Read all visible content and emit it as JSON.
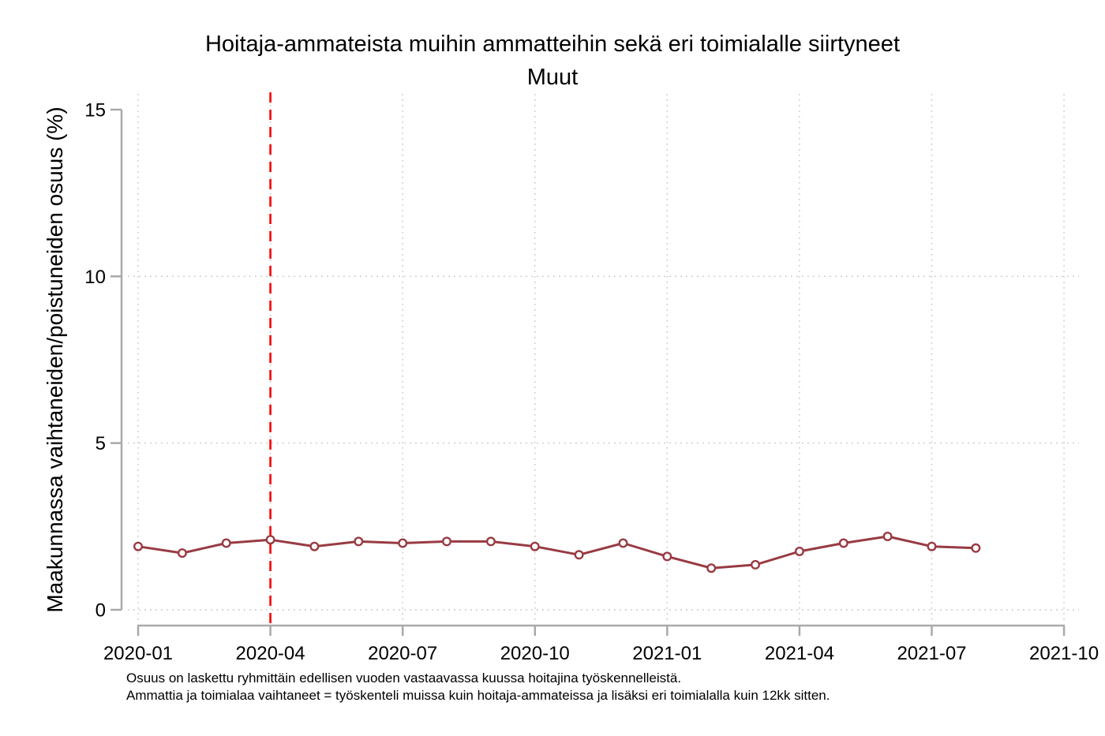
{
  "header": {
    "title": "Hoitaja-ammateista muihin ammatteihin sekä eri toimialalle siirtyneet",
    "subtitle": "Muut"
  },
  "footnotes": {
    "line1": "Osuus on laskettu ryhmittäin edellisen vuoden vastaavassa kuussa hoitajina työskennelleistä.",
    "line2": "Ammattia ja toimialaa vaihtaneet = työskenteli muissa kuin hoitaja-ammateissa ja lisäksi eri toimialalla kuin 12kk sitten."
  },
  "chart_data": {
    "type": "line",
    "title": "Hoitaja-ammateista muihin ammatteihin sekä eri toimialalle siirtyneet",
    "subtitle": "Muut",
    "xlabel": "",
    "ylabel": "Maakunnassa vaihtaneiden/poistuneiden osuus (%)",
    "ylim": [
      0,
      15
    ],
    "y_ticks": [
      0,
      5,
      10,
      15
    ],
    "y_grid_at": [
      0,
      5,
      10
    ],
    "x_axis_start": "2020-01",
    "x_axis_end": "2021-10",
    "x_tick_labels": [
      "2020-01",
      "2020-04",
      "2020-07",
      "2020-10",
      "2021-01",
      "2021-04",
      "2021-07",
      "2021-10"
    ],
    "grid": true,
    "legend": "none",
    "marker": "hollow-circle",
    "series": [
      {
        "name": "Muut",
        "x": [
          "2020-01",
          "2020-02",
          "2020-03",
          "2020-04",
          "2020-05",
          "2020-06",
          "2020-07",
          "2020-08",
          "2020-09",
          "2020-10",
          "2020-11",
          "2020-12",
          "2021-01",
          "2021-02",
          "2021-03",
          "2021-04",
          "2021-05",
          "2021-06",
          "2021-07",
          "2021-08"
        ],
        "values": [
          1.9,
          1.7,
          2.0,
          2.1,
          1.9,
          2.05,
          2.0,
          2.05,
          2.05,
          1.9,
          1.65,
          2.0,
          1.6,
          1.25,
          1.35,
          1.75,
          2.0,
          2.2,
          1.9,
          1.85
        ]
      }
    ],
    "reference_line": {
      "x": "2020-04",
      "orientation": "vertical",
      "style": "dashed"
    },
    "colors": {
      "series_line": "#983b43",
      "marker_fill": "#ffffff",
      "reference_line": "#f80000",
      "axis": "#a9a9a9",
      "grid": "#c6c6c6",
      "text": "#000000",
      "background": "#ffffff"
    }
  }
}
